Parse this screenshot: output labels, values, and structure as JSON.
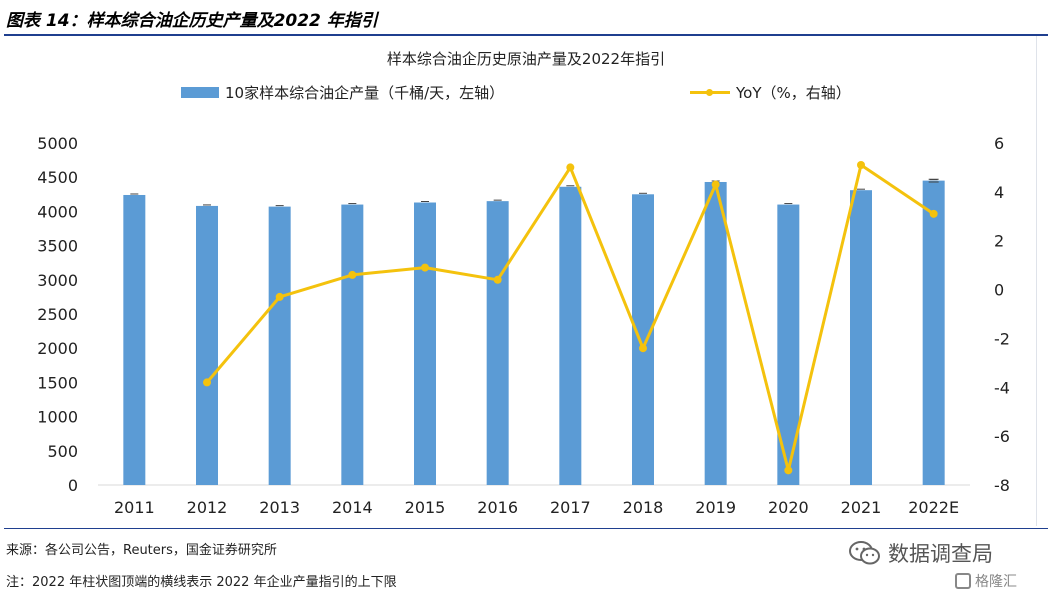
{
  "figure_title": "图表 14：样本综合油企历史产量及2022 年指引",
  "source_text": "来源：各公司公告，Reuters，国金证券研究所",
  "note_text": "注：2022 年柱状图顶端的横线表示 2022 年企业产量指引的上下限",
  "watermark": {
    "wechat": "数据调查局",
    "brand": "格隆汇",
    "wechat_icon": "wechat-icon",
    "brand_icon": "gelonghui-logo-icon"
  },
  "colors": {
    "bar": "#5b9bd5",
    "line": "#f4c20d",
    "title_rule": "#1f3f8f",
    "axis_text": "#222222"
  },
  "chart_data": {
    "type": "bar",
    "title": "样本综合油企历史原油产量及2022年指引",
    "categories": [
      "2011",
      "2012",
      "2013",
      "2014",
      "2015",
      "2016",
      "2017",
      "2018",
      "2019",
      "2020",
      "2021",
      "2022E"
    ],
    "series": [
      {
        "name": "10家样本综合油企产量（千桶/天，左轴）",
        "type": "bar",
        "axis": "left",
        "values": [
          4240,
          4080,
          4070,
          4100,
          4130,
          4150,
          4360,
          4250,
          4430,
          4100,
          4310,
          4450
        ]
      },
      {
        "name": "YoY（%，右轴）",
        "type": "line",
        "axis": "right",
        "values": [
          null,
          -3.8,
          -0.3,
          0.6,
          0.9,
          0.4,
          5.0,
          -2.4,
          4.3,
          -7.4,
          5.1,
          3.1
        ]
      }
    ],
    "guidance_range_2022E": [
      4430,
      4470
    ],
    "y_left": {
      "min": 0,
      "max": 5000,
      "ticks": [
        0,
        500,
        1000,
        1500,
        2000,
        2500,
        3000,
        3500,
        4000,
        4500,
        5000
      ]
    },
    "y_right": {
      "min": -8,
      "max": 6,
      "ticks": [
        -8,
        -6,
        -4,
        -2,
        0,
        2,
        4,
        6
      ]
    },
    "grid": false,
    "legend_position": "top"
  }
}
